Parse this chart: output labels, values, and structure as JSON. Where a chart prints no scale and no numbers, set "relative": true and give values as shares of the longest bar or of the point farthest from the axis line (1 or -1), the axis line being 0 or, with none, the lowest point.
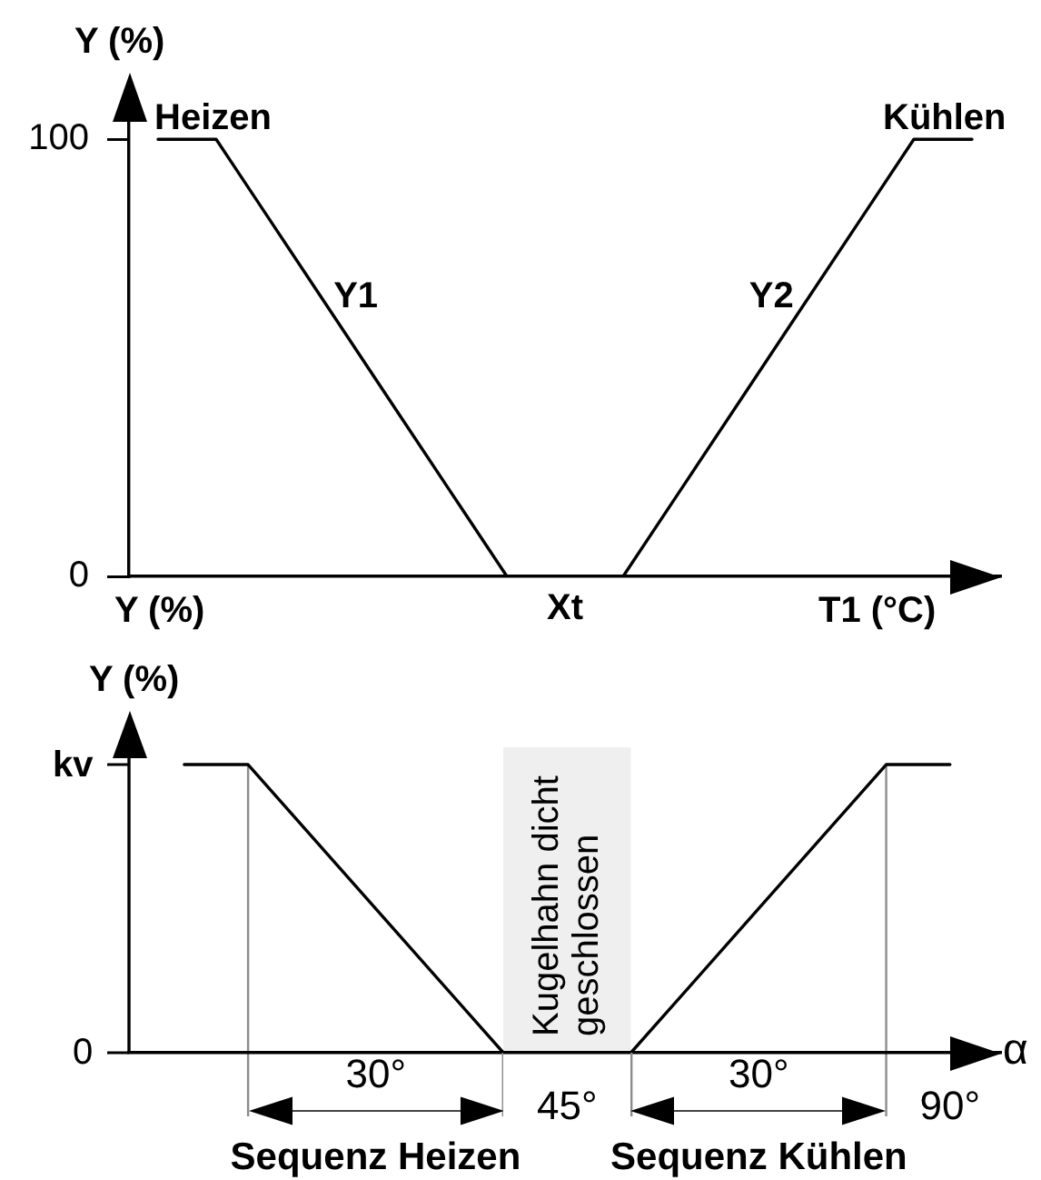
{
  "chart_data": [
    {
      "type": "line",
      "categories": [
        null,
        null,
        null,
        null,
        null,
        null,
        null,
        "Xt",
        null,
        null,
        null,
        null,
        null,
        null,
        null
      ],
      "series": [
        {
          "name": "Y1",
          "color": "#000000",
          "values": [
            100,
            100,
            80,
            60,
            40,
            20,
            0,
            null,
            null,
            null,
            null,
            null,
            null,
            null,
            null
          ]
        },
        {
          "name": "Y2",
          "color": "#000000",
          "values": [
            null,
            null,
            null,
            null,
            null,
            null,
            null,
            0,
            0,
            20,
            40,
            60,
            80,
            100,
            100
          ]
        }
      ],
      "ylim": [
        0,
        104
      ],
      "yticks": [
        0,
        100
      ],
      "xlabel": "T1 (°C)",
      "ylabel": "Y (%)",
      "annotations": [
        "Heizen",
        "Kühlen",
        "Y (%)"
      ]
    },
    {
      "type": "line",
      "relative": true,
      "x": [
        0,
        7.5,
        37.5,
        52.5,
        82.5,
        90
      ],
      "values": [
        1,
        1,
        0,
        0,
        1,
        1
      ],
      "color": "#000000",
      "xlim": [
        -6.5,
        96
      ],
      "xticks": [
        {
          "value": 45,
          "label": "45°"
        },
        {
          "value": 90,
          "label": "90°"
        }
      ],
      "xlabel": "α",
      "ylabel": "Y (%)",
      "ref_lines": [
        {
          "axis": "x",
          "value": 7.5,
          "color": "#8c8c8c"
        },
        {
          "axis": "x",
          "value": 82.5,
          "color": "#8c8c8c"
        }
      ],
      "bands": [
        {
          "axis": "x",
          "from": 37.5,
          "to": 52.5,
          "label": "Kugelhahn dicht geschlossen",
          "color": "#efefef"
        }
      ],
      "annotations": [
        "kv",
        "0",
        "30°",
        "30°",
        "Sequenz Heizen",
        "Sequenz Kühlen"
      ]
    }
  ]
}
